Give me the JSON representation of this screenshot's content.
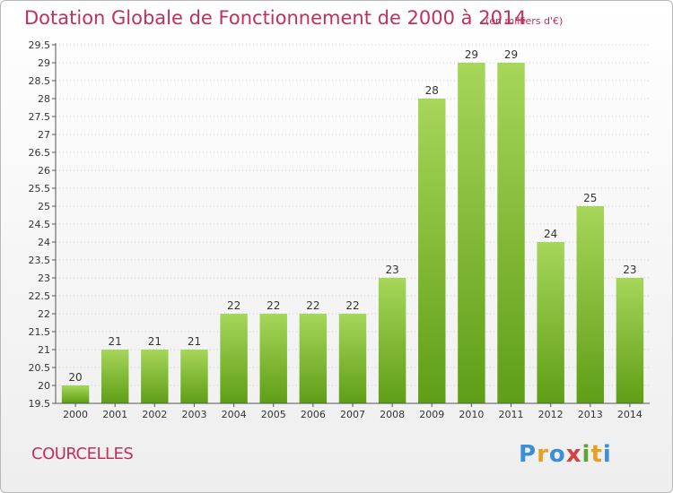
{
  "header": {
    "title": "Dotation Globale de Fonctionnement de 2000 à 2014",
    "unit": "(en milliers d'€)"
  },
  "footer": {
    "commune": "COURCELLES",
    "logo_text": "Proxiti"
  },
  "colors": {
    "title": "#c0305a",
    "bar_light": "#a6d65a",
    "bar_dark": "#5f9e16",
    "grid": "#c8c8c8"
  },
  "chart_data": {
    "type": "bar",
    "title": "Dotation Globale de Fonctionnement de 2000 à 2014",
    "subtitle": "(en milliers d'€)",
    "xlabel": "",
    "ylabel": "",
    "categories": [
      "2000",
      "2001",
      "2002",
      "2003",
      "2004",
      "2005",
      "2006",
      "2007",
      "2008",
      "2009",
      "2010",
      "2011",
      "2012",
      "2013",
      "2014"
    ],
    "values": [
      20,
      21,
      21,
      21,
      22,
      22,
      22,
      22,
      23,
      28,
      29,
      29,
      24,
      25,
      23
    ],
    "ylim": [
      19.5,
      29.5
    ],
    "yticks": [
      "19.5",
      "20",
      "20.5",
      "21",
      "21.5",
      "22",
      "22.5",
      "23",
      "23.5",
      "24",
      "24.5",
      "25",
      "25.5",
      "26",
      "26.5",
      "27",
      "27.5",
      "28",
      "28.5",
      "29",
      "29.5"
    ],
    "grid": true,
    "legend": "none"
  }
}
